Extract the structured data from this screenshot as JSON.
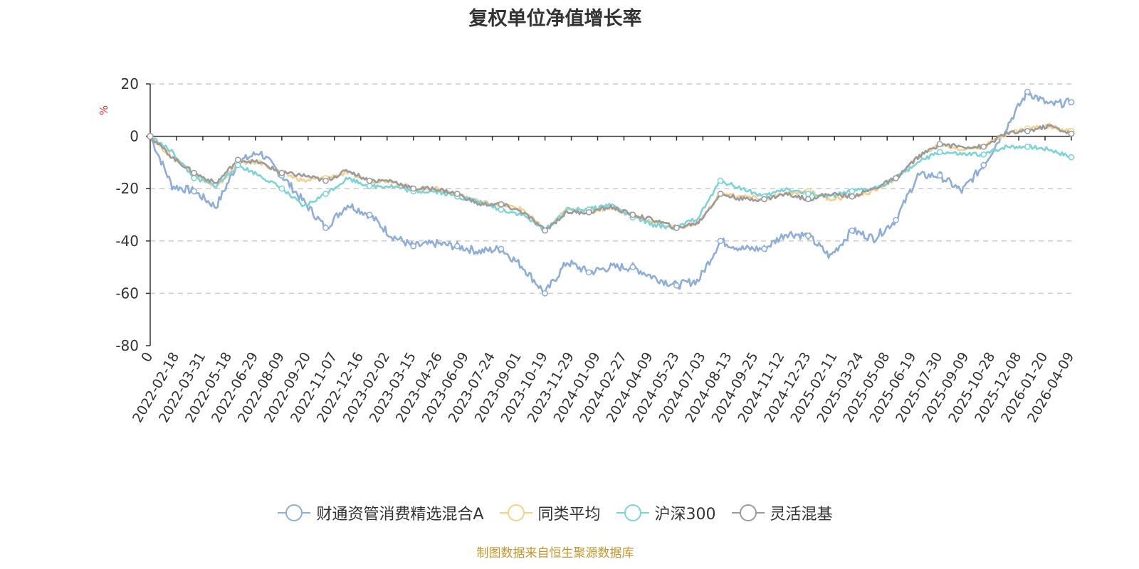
{
  "chart_data": {
    "type": "line",
    "title": "复权单位净值增长率",
    "ylabel": "%",
    "ylim": [
      -80,
      20
    ],
    "yticks": [
      20,
      0,
      -20,
      -40,
      -60,
      -80
    ],
    "xtick_labels": [
      "0",
      "2022-02-18",
      "2022-03-31",
      "2022-05-18",
      "2022-06-29",
      "2022-08-09",
      "2022-09-20",
      "2022-11-07",
      "2022-12-16",
      "2023-02-02",
      "2023-03-15",
      "2023-04-26",
      "2023-06-09",
      "2023-07-24",
      "2023-09-01",
      "2023-10-19",
      "2023-11-29",
      "2024-01-09",
      "2024-02-27",
      "2024-04-09",
      "2024-05-23",
      "2024-07-03",
      "2024-08-13",
      "2024-09-25",
      "2024-11-12",
      "2024-12-23",
      "2025-02-11",
      "2025-03-24",
      "2025-05-08",
      "2025-06-19",
      "2025-07-30",
      "2025-09-09",
      "2025-10-28",
      "2025-12-08",
      "2026-01-20",
      "2026-04-09"
    ],
    "grid": true,
    "legend_position": "bottom",
    "series": [
      {
        "name": "财通资管消费精选混合A",
        "color": "#8eadd9",
        "values": [
          0,
          -19,
          -21,
          -27,
          -10,
          -6,
          -15,
          -25,
          -35,
          -26,
          -30,
          -38,
          -42,
          -41,
          -42,
          -44,
          -43,
          -50,
          -60,
          -48,
          -52,
          -50,
          -50,
          -54,
          -57,
          -55,
          -40,
          -43,
          -43,
          -37,
          -38,
          -46,
          -36,
          -39,
          -32,
          -15,
          -15,
          -21,
          -11,
          3,
          17,
          12,
          13
        ]
      },
      {
        "name": "同类平均",
        "color": "#f5d08e",
        "values": [
          0,
          -8,
          -14,
          -20,
          -10,
          -10,
          -14,
          -17,
          -16,
          -14,
          -17,
          -17,
          -20,
          -20,
          -22,
          -25,
          -26,
          -28,
          -36,
          -28,
          -29,
          -27,
          -30,
          -33,
          -35,
          -33,
          -22,
          -23,
          -24,
          -22,
          -21,
          -24,
          -23,
          -21,
          -16,
          -8,
          -3,
          -5,
          -4,
          1,
          3,
          4,
          2
        ]
      },
      {
        "name": "沪深300",
        "color": "#7dd3d8",
        "values": [
          0,
          -6,
          -16,
          -19,
          -11,
          -15,
          -20,
          -27,
          -22,
          -16,
          -19,
          -19,
          -21,
          -21,
          -23,
          -25,
          -28,
          -30,
          -36,
          -28,
          -28,
          -26,
          -31,
          -34,
          -35,
          -31,
          -17,
          -20,
          -23,
          -20,
          -22,
          -23,
          -21,
          -20,
          -16,
          -10,
          -6,
          -7,
          -7,
          -4,
          -4,
          -5,
          -8
        ]
      },
      {
        "name": "灵活混基",
        "color": "#9b9b9b",
        "values": [
          0,
          -8,
          -14,
          -18,
          -9,
          -10,
          -14,
          -15,
          -17,
          -13,
          -17,
          -17,
          -20,
          -20,
          -22,
          -26,
          -26,
          -29,
          -36,
          -29,
          -29,
          -27,
          -30,
          -32,
          -35,
          -33,
          -22,
          -24,
          -24,
          -22,
          -24,
          -22,
          -23,
          -20,
          -16,
          -8,
          -3,
          -4,
          -4,
          1,
          2,
          4,
          1
        ]
      }
    ]
  },
  "legend": {
    "items": [
      {
        "label": "财通资管消费精选混合A",
        "color": "#8eadd9"
      },
      {
        "label": "同类平均",
        "color": "#f5d08e"
      },
      {
        "label": "沪深300",
        "color": "#7dd3d8"
      },
      {
        "label": "灵活混基",
        "color": "#9b9b9b"
      }
    ]
  },
  "footer": {
    "source": "制图数据来自恒生聚源数据库"
  }
}
